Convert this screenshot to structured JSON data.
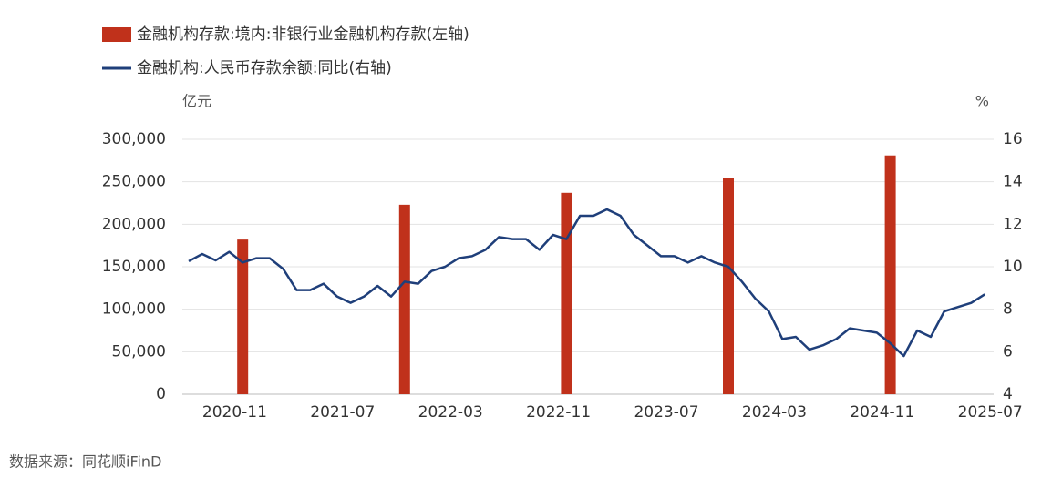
{
  "chart_data": {
    "type": "bar-line",
    "left_unit": "亿元",
    "right_unit": "%",
    "source": "数据来源：同花顺iFinD",
    "categories": [
      null,
      null,
      null,
      "2020-11",
      null,
      null,
      null,
      null,
      null,
      null,
      null,
      "2021-07",
      null,
      null,
      null,
      null,
      null,
      null,
      null,
      "2022-03",
      null,
      null,
      null,
      null,
      null,
      null,
      null,
      "2022-11",
      null,
      null,
      null,
      null,
      null,
      null,
      null,
      "2023-07",
      null,
      null,
      null,
      null,
      null,
      null,
      null,
      "2024-03",
      null,
      null,
      null,
      null,
      null,
      null,
      null,
      "2024-11",
      null,
      null,
      null,
      null,
      null,
      null,
      null,
      "2025-07"
    ],
    "series": [
      {
        "name": "金融机构存款:境内:非银行业金融机构存款(左轴)",
        "type": "bar",
        "color": "#c0311b",
        "values": [
          null,
          null,
          null,
          null,
          182000,
          null,
          null,
          null,
          null,
          null,
          null,
          null,
          null,
          null,
          null,
          null,
          223000,
          null,
          null,
          null,
          null,
          null,
          null,
          null,
          null,
          null,
          null,
          null,
          237000,
          null,
          null,
          null,
          null,
          null,
          null,
          null,
          null,
          null,
          null,
          null,
          255000,
          null,
          null,
          null,
          null,
          null,
          null,
          null,
          null,
          null,
          null,
          null,
          281000,
          null,
          null,
          null,
          null,
          null,
          null,
          null
        ]
      },
      {
        "name": "金融机构:人民币存款余额:同比(右轴)",
        "type": "line",
        "axis": "y2",
        "color": "#1f3f7a",
        "values": [
          10.26,
          10.6,
          10.3,
          10.7,
          10.2,
          10.4,
          10.4,
          9.9,
          8.9,
          8.9,
          9.2,
          8.6,
          8.3,
          8.6,
          9.1,
          8.6,
          9.3,
          9.2,
          9.8,
          10.0,
          10.4,
          10.5,
          10.8,
          11.4,
          11.3,
          11.3,
          10.8,
          11.5,
          11.3,
          12.4,
          12.4,
          12.7,
          12.4,
          11.5,
          11.0,
          10.5,
          10.5,
          10.2,
          10.5,
          10.2,
          10.0,
          9.3,
          8.5,
          7.9,
          6.6,
          6.7,
          6.1,
          6.3,
          6.6,
          7.1,
          7.0,
          6.9,
          6.4,
          5.8,
          7.0,
          6.7,
          7.9,
          8.1,
          8.3,
          8.7
        ]
      }
    ],
    "ylim": [
      0,
      300000
    ],
    "yticks": [
      0,
      {
        "value": 50000,
        "label": "50,000"
      },
      {
        "value": 100000,
        "label": "100,000"
      },
      {
        "value": 150000,
        "label": "150,000"
      },
      {
        "value": 200000,
        "label": "200,000"
      },
      {
        "value": 250000,
        "label": "250,000"
      },
      {
        "value": 300000,
        "label": "300,000"
      }
    ],
    "y2lim": [
      4,
      16
    ],
    "y2ticks": [
      4,
      6,
      8,
      10,
      12,
      14,
      16
    ],
    "grid": true
  }
}
